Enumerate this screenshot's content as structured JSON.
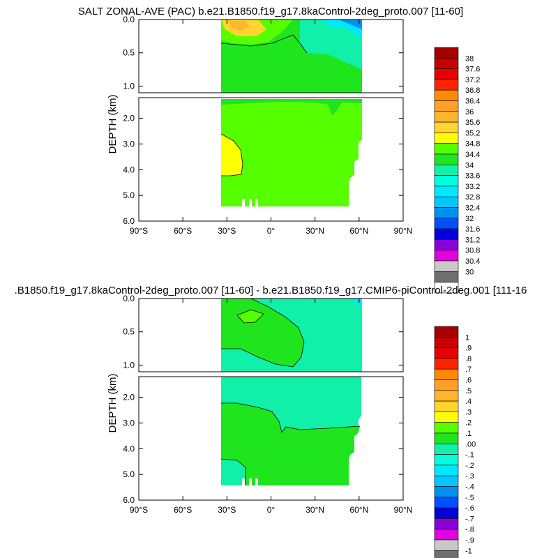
{
  "chart_data": [
    {
      "type": "heatmap",
      "title": "SALT ZONAL-AVE (PAC) b.e21.B1850.f19_g17.8kaControl-2deg_proto.007 [11-60]",
      "ylabel": "DEPTH (km)",
      "xlim": [
        -90,
        90
      ],
      "ylim": [
        6.0,
        0.0
      ],
      "x_ticks": [
        "90°S",
        "60°S",
        "30°S",
        "0°",
        "30°N",
        "60°N",
        "90°N"
      ],
      "y_ticks_upper": [
        "0.0",
        "0.5",
        "1.0"
      ],
      "y_ticks_lower": [
        "2.0",
        "3.0",
        "4.0",
        "5.0",
        "6.0"
      ],
      "data_extent": {
        "lon_min": -34,
        "lon_max": 62,
        "max_depth": 5.4
      },
      "colorbar_labels": [
        "38",
        "37.6",
        "37.2",
        "36.8",
        "36.4",
        "36",
        "35.6",
        "35.2",
        "34.8",
        "34.4",
        "34",
        "33.6",
        "33.2",
        "32.8",
        "32.4",
        "32",
        "31.6",
        "31.2",
        "30.8",
        "30.4",
        "30"
      ],
      "colors": [
        "#a50000",
        "#c80000",
        "#e60000",
        "#ff2200",
        "#ff8a00",
        "#ff9f28",
        "#ffb52e",
        "#ffd52e",
        "#ffff00",
        "#55ff00",
        "#1fe51f",
        "#10f0a8",
        "#00ffdc",
        "#00e8ff",
        "#00c8ff",
        "#0090f0",
        "#0050ff",
        "#0000d8",
        "#8a00d8",
        "#e000e0",
        "#c8c8c8",
        "#6e6e6e",
        "#ffffff"
      ],
      "region_levels": {
        "dominant": "34.4",
        "surface_high": "35.6",
        "deep_high": "35.2",
        "low": "33.6",
        "lowest": "32.4"
      }
    },
    {
      "type": "heatmap",
      "title": ".B1850.f19_g17.8kaControl-2deg_proto.007 [11-60] - b.e21.B1850.f19_g17.CMIP6-piControl-2deg.001 [111-16",
      "ylabel": "DEPTH (km)",
      "xlim": [
        -90,
        90
      ],
      "ylim": [
        6.0,
        0.0
      ],
      "x_ticks": [
        "90°S",
        "60°S",
        "30°S",
        "0°",
        "30°N",
        "60°N",
        "90°N"
      ],
      "y_ticks_upper": [
        "0.0",
        "0.5",
        "1.0"
      ],
      "y_ticks_lower": [
        "2.0",
        "3.0",
        "4.0",
        "5.0",
        "6.0"
      ],
      "data_extent": {
        "lon_min": -34,
        "lon_max": 62,
        "max_depth": 5.4
      },
      "colorbar_labels": [
        "1",
        ".9",
        ".8",
        ".7",
        ".6",
        ".5",
        ".4",
        ".3",
        ".2",
        ".1",
        ".00",
        "-.1",
        "-.2",
        "-.3",
        "-.4",
        "-.5",
        "-.6",
        "-.7",
        "-.8",
        "-.9",
        "-1"
      ],
      "colors": [
        "#a50000",
        "#c80000",
        "#e60000",
        "#ff2200",
        "#ff8a00",
        "#ff9f28",
        "#ffb52e",
        "#ffd52e",
        "#ffff00",
        "#55ff00",
        "#1fe51f",
        "#10f0a8",
        "#00ffdc",
        "#00e8ff",
        "#00c8ff",
        "#0090f0",
        "#0050ff",
        "#0000d8",
        "#8a00d8",
        "#e000e0",
        "#c8c8c8",
        "#6e6e6e",
        "#ffffff"
      ],
      "region_levels": {
        "dominant": ".00",
        "positive": ".1",
        "negative": "-.1"
      }
    }
  ]
}
